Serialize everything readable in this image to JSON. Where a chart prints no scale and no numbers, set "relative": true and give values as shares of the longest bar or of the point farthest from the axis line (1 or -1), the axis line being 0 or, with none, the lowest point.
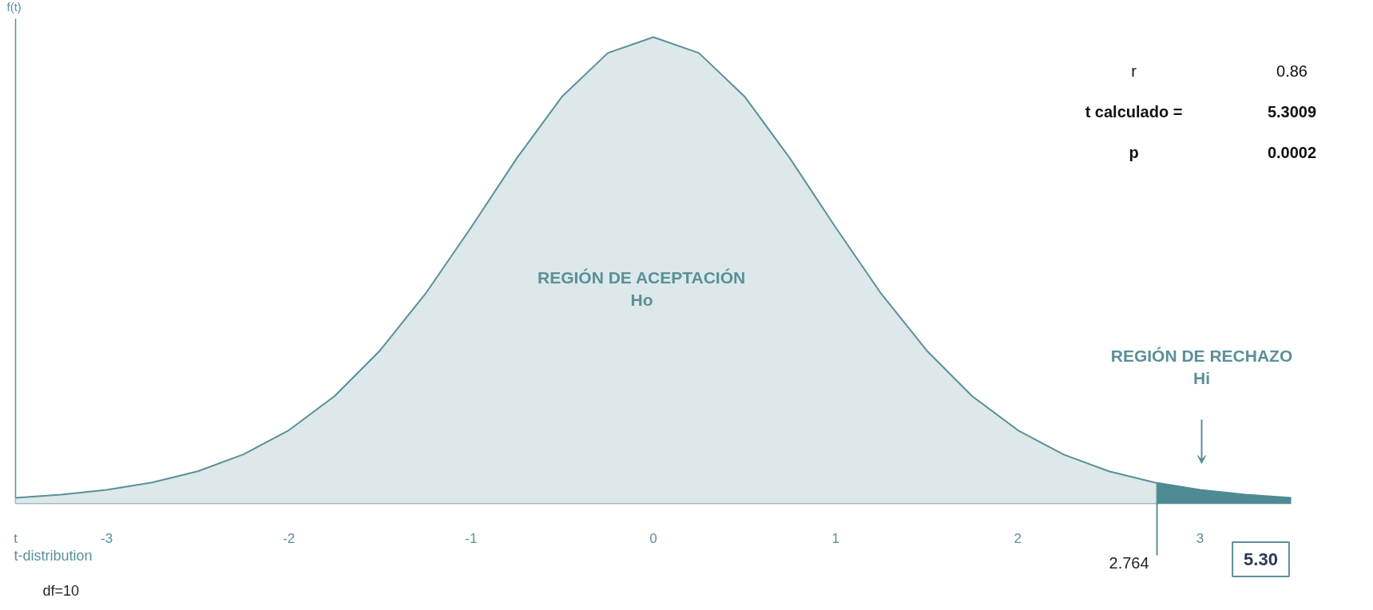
{
  "chart_data": {
    "type": "area",
    "relative": true,
    "ylabel": "f(t)",
    "xlim": [
      -3.5,
      3.5
    ],
    "xticks": [
      {
        "value": -3.5,
        "label": "t"
      },
      -3,
      -2,
      -1,
      0,
      1,
      2,
      3
    ],
    "series": [
      {
        "color": "#5a9099",
        "x": [
          -3.5,
          -3.25,
          -3,
          -2.75,
          -2.5,
          -2.25,
          -2,
          -1.75,
          -1.5,
          -1.25,
          -1,
          -0.75,
          -0.5,
          -0.25,
          0,
          0.25,
          0.5,
          0.75,
          1,
          1.25,
          1.5,
          1.75,
          2,
          2.25,
          2.5,
          2.75,
          2.764
        ],
        "values": [
          0.012,
          0.019,
          0.029,
          0.045,
          0.069,
          0.105,
          0.157,
          0.23,
          0.328,
          0.45,
          0.592,
          0.74,
          0.873,
          0.966,
          1,
          0.966,
          0.873,
          0.74,
          0.592,
          0.45,
          0.328,
          0.23,
          0.157,
          0.105,
          0.069,
          0.045,
          0.044
        ]
      },
      {
        "color": "#4e8b94",
        "x": [
          2.764,
          3,
          3.25,
          3.5
        ],
        "values": [
          0.044,
          0.029,
          0.019,
          0.012
        ]
      }
    ],
    "ref_lines": [
      {
        "axis": "x",
        "value": 2.764,
        "label": "2.764",
        "color": "#5a9099"
      }
    ],
    "grid": false,
    "annotations": [
      "REGIÓN DE ACEPTACIÓN\nHo",
      "REGIÓN DE RECHAZO\nHi",
      "t-distribution",
      "df=10",
      "5.30",
      "r",
      "0.86",
      "t calculado =",
      "5.3009",
      "p",
      "0.0002"
    ]
  }
}
